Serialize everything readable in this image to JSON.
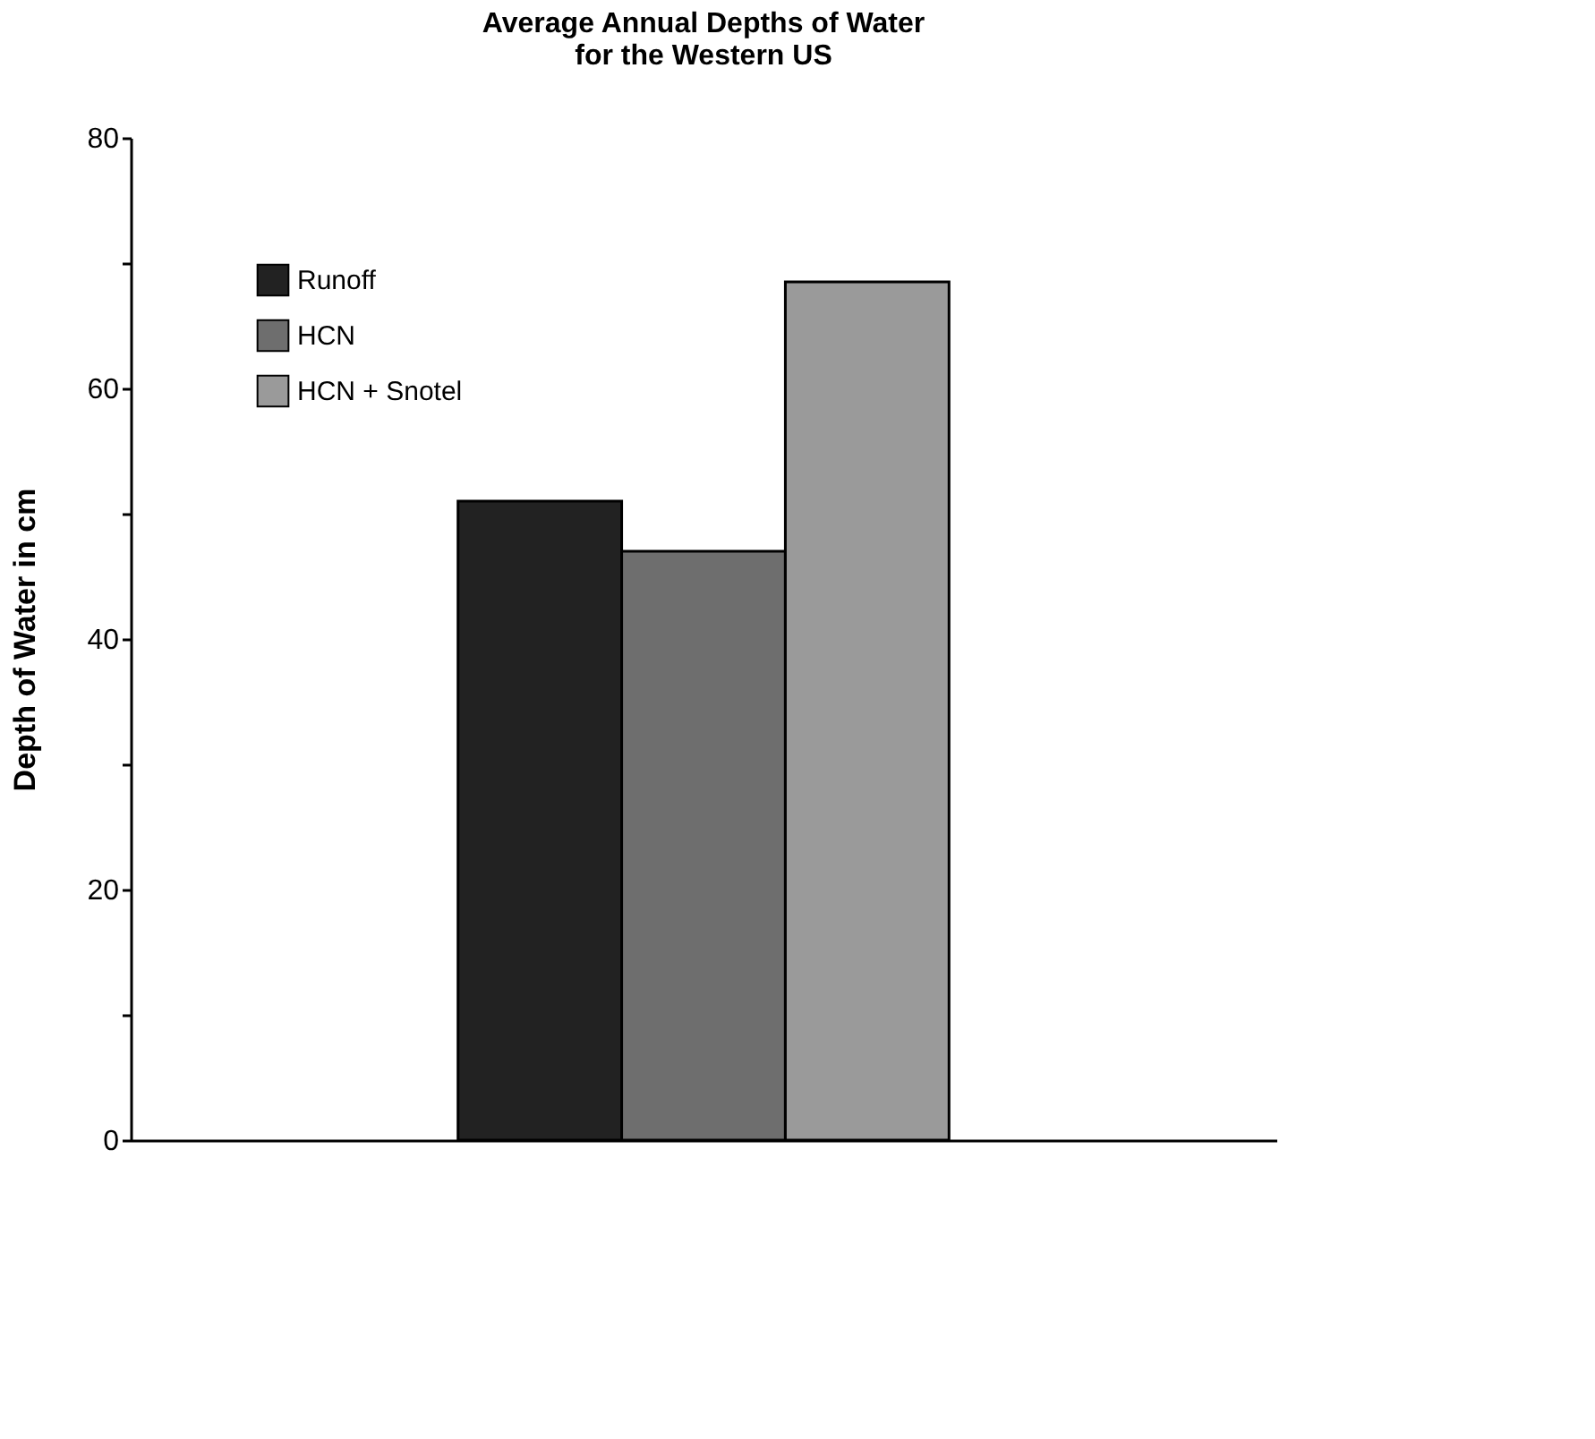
{
  "chart_data": {
    "type": "bar",
    "title": [
      "Average Annual Depths of Water",
      "for the Western US"
    ],
    "ylabel": "Depth of Water in cm",
    "categories": [
      null
    ],
    "series": [
      {
        "name": "Runoff",
        "color": "#222222",
        "values": [
          51
        ]
      },
      {
        "name": "HCN",
        "color": "#6e6e6e",
        "values": [
          47
        ]
      },
      {
        "name": "HCN + Snotel",
        "color": "#9a9a9a",
        "values": [
          68.5
        ]
      }
    ],
    "ylim": [
      0,
      80
    ],
    "yticks": [
      0,
      {
        "value": 10,
        "label": null
      },
      20,
      {
        "value": 30,
        "label": null
      },
      40,
      {
        "value": 50,
        "label": null
      },
      60,
      {
        "value": 70,
        "label": null
      },
      80
    ],
    "grid": false,
    "legend": "top left"
  }
}
